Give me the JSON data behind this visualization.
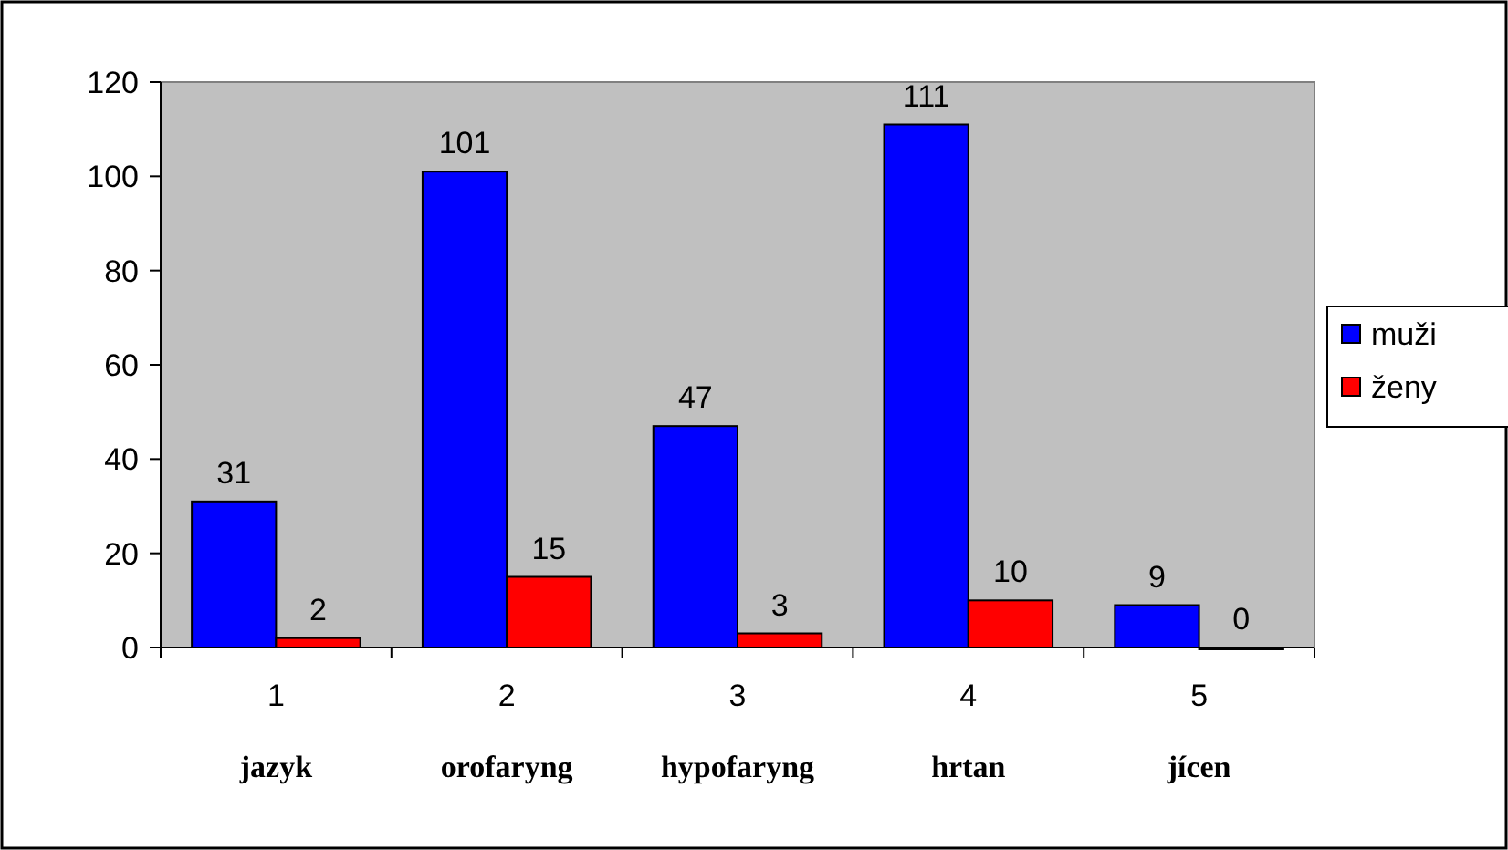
{
  "chart_data": {
    "type": "bar",
    "categories": [
      "1\njazyk",
      "2\norofaryng",
      "3\nhypofaryng",
      "4\nhrtan",
      "5\njícen"
    ],
    "series": [
      {
        "name": "muži",
        "color": "#0000ff",
        "values": [
          31,
          101,
          47,
          111,
          9
        ]
      },
      {
        "name": "ženy",
        "color": "#ff0000",
        "values": [
          2,
          15,
          3,
          10,
          0
        ]
      }
    ],
    "ylim": [
      0,
      120
    ],
    "yticks": [
      0,
      20,
      40,
      60,
      80,
      100,
      120
    ],
    "data_labels": true,
    "legend": "right",
    "grid": false
  }
}
